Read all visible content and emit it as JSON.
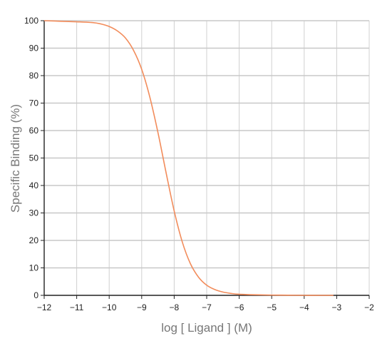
{
  "chart_data": {
    "type": "line",
    "xlabel": "log [ Ligand ] (M)",
    "ylabel": "Specific Binding (%)",
    "xlim": [
      -12,
      -2
    ],
    "ylim": [
      0,
      100
    ],
    "x_ticks": [
      -12,
      -11,
      -10,
      -9,
      -8,
      -7,
      -6,
      -5,
      -4,
      -3,
      -2
    ],
    "x_tick_labels": [
      "−12",
      "−11",
      "−10",
      "−9",
      "−8",
      "−7",
      "−6",
      "−5",
      "−4",
      "−3",
      "−2"
    ],
    "y_ticks": [
      0,
      10,
      20,
      30,
      40,
      50,
      60,
      70,
      80,
      90,
      100
    ],
    "y_tick_labels": [
      "0",
      "10",
      "20",
      "30",
      "40",
      "50",
      "60",
      "70",
      "80",
      "90",
      "100"
    ],
    "grid": true,
    "series": [
      {
        "color": "#f28c5b",
        "x": [
          -12,
          -11.5,
          -11,
          -10.5,
          -10.25,
          -10,
          -9.75,
          -9.5,
          -9.25,
          -9,
          -8.75,
          -8.5,
          -8.25,
          -8,
          -7.75,
          -7.5,
          -7.25,
          -7,
          -6.75,
          -6.5,
          -6.25,
          -6,
          -5.5,
          -5,
          -4.5,
          -4,
          -3.5,
          -3.1
        ],
        "y": [
          100,
          99.8,
          99.6,
          99.3,
          98.8,
          97.9,
          96.3,
          93.7,
          89.2,
          82.3,
          72.2,
          59.3,
          44.7,
          30.7,
          19.4,
          11.5,
          6.6,
          3.7,
          2.1,
          1.2,
          0.7,
          0.4,
          0.2,
          0.1,
          0.05,
          0,
          0,
          0
        ]
      }
    ]
  }
}
